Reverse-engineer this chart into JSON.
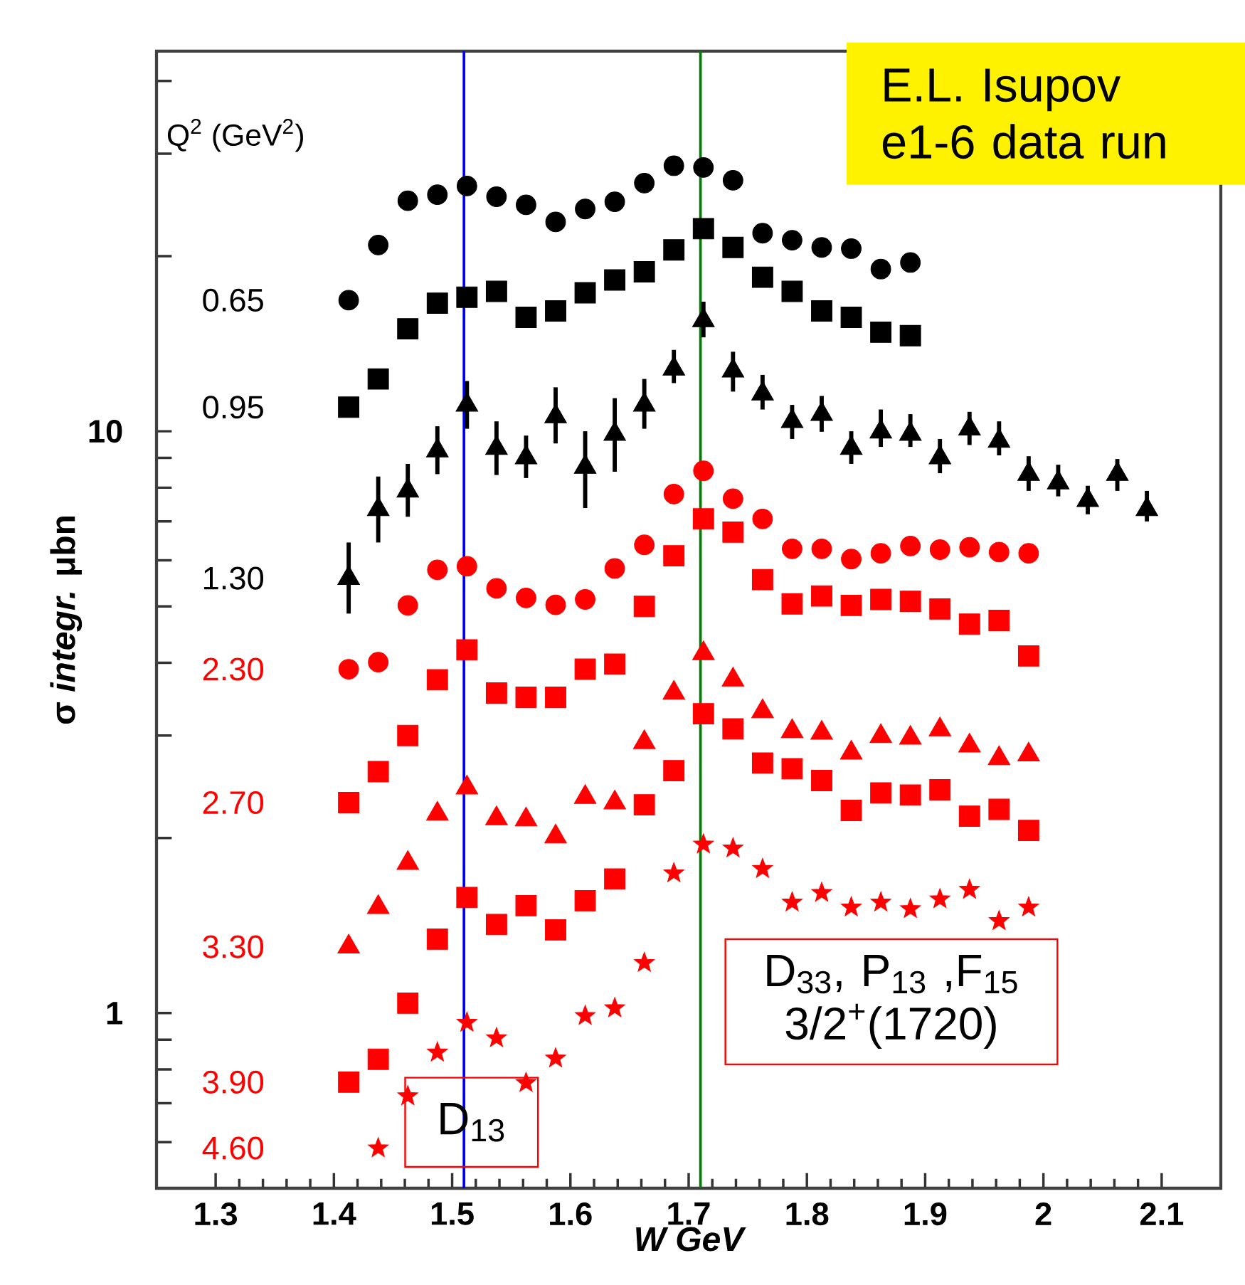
{
  "chart_data": {
    "type": "scatter",
    "xlabel": "W GeV",
    "ylabel": "σ *integr.* μbn",
    "legend_title": "Q$^{2}$ (GeV$^{2}$)",
    "log": "y",
    "xlim": [
      1.25,
      2.15
    ],
    "ylim": [
      0.5,
      45
    ],
    "xticks": [
      1.3,
      1.4,
      1.5,
      1.6,
      1.7,
      1.8,
      1.9,
      2,
      2.1
    ],
    "yticks": [
      {
        "value": 0.6,
        "label": null
      },
      {
        "value": 0.7,
        "label": null
      },
      {
        "value": 0.8,
        "label": null
      },
      {
        "value": 0.9,
        "label": null
      },
      {
        "value": 1,
        "label": "1"
      },
      {
        "value": 2,
        "label": null
      },
      {
        "value": 3,
        "label": null
      },
      {
        "value": 4,
        "label": null
      },
      {
        "value": 5,
        "label": null
      },
      {
        "value": 6,
        "label": null
      },
      {
        "value": 7,
        "label": null
      },
      {
        "value": 8,
        "label": null
      },
      {
        "value": 9,
        "label": null
      },
      {
        "value": 10,
        "label": "10"
      },
      {
        "value": 20,
        "label": null
      },
      {
        "value": 30,
        "label": null
      },
      {
        "value": 40,
        "label": null
      }
    ],
    "ref_lines": [
      {
        "axis": "x",
        "value": 1.51,
        "color": "#0000ff"
      },
      {
        "axis": "x",
        "value": 1.71,
        "color": "#008000"
      }
    ],
    "annotations": [
      "E.L. Isupov e1-6 data run",
      "D$_{13}$",
      "D$_{33}$, P$_{13}$ ,F$_{15}$ 3/2$^{+}$(1720)"
    ],
    "series": [
      {
        "name": "0.65",
        "color": "#000000",
        "marker": "circle",
        "x": [
          1.4125,
          1.4375,
          1.4625,
          1.4875,
          1.5125,
          1.5375,
          1.5625,
          1.5875,
          1.6125,
          1.6375,
          1.6625,
          1.6875,
          1.7125,
          1.7375,
          1.7625,
          1.7875,
          1.8125,
          1.8375,
          1.8625,
          1.8875
        ],
        "values": [
          16.8,
          20.9,
          24.9,
          25.5,
          26.4,
          25.3,
          24.5,
          22.9,
          24.1,
          24.8,
          26.7,
          28.6,
          28.4,
          27.0,
          21.9,
          21.3,
          20.7,
          20.6,
          19.0,
          19.5
        ]
      },
      {
        "name": "0.95",
        "color": "#000000",
        "marker": "square",
        "x": [
          1.4125,
          1.4375,
          1.4625,
          1.4875,
          1.5125,
          1.5375,
          1.5625,
          1.5875,
          1.6125,
          1.6375,
          1.6625,
          1.6875,
          1.7125,
          1.7375,
          1.7625,
          1.7875,
          1.8125,
          1.8375,
          1.8625,
          1.8875
        ],
        "values": [
          11.0,
          12.3,
          15.0,
          16.6,
          17.0,
          17.4,
          15.7,
          16.1,
          17.3,
          18.2,
          18.8,
          20.5,
          22.3,
          20.7,
          18.4,
          17.4,
          16.1,
          15.7,
          14.8,
          14.6
        ]
      },
      {
        "name": "1.30",
        "color": "#000000",
        "marker": "triangle",
        "x": [
          1.4125,
          1.4375,
          1.4625,
          1.4875,
          1.5125,
          1.5375,
          1.5625,
          1.5875,
          1.6125,
          1.6375,
          1.6625,
          1.6875,
          1.7125,
          1.7375,
          1.7625,
          1.7875,
          1.8125,
          1.8375,
          1.8625,
          1.8875,
          1.9125,
          1.9375,
          1.9625,
          1.9875,
          2.0125,
          2.0375,
          2.0625,
          2.0875
        ],
        "values": [
          5.59,
          7.34,
          7.9,
          9.26,
          11.1,
          9.35,
          9.01,
          10.6,
          8.68,
          9.89,
          11.1,
          12.8,
          15.5,
          12.7,
          11.6,
          10.4,
          10.7,
          9.35,
          9.98,
          9.89,
          9.01,
          10.1,
          9.62,
          8.44,
          8.16,
          7.61,
          8.44,
          7.34
        ],
        "errors": [
          [
            4.86,
            6.44
          ],
          [
            6.44,
            8.36
          ],
          [
            7.13,
            8.79
          ],
          [
            8.44,
            10.2
          ],
          [
            10.1,
            12.2
          ],
          [
            8.41,
            10.4
          ],
          [
            8.31,
            9.83
          ],
          [
            9.53,
            11.9
          ],
          [
            7.38,
            10.0
          ],
          [
            8.52,
            11.4
          ],
          [
            10.1,
            12.3
          ],
          [
            12.1,
            13.8
          ],
          [
            14.5,
            16.7
          ],
          [
            11.7,
            13.7
          ],
          [
            10.9,
            12.5
          ],
          [
            9.7,
            11.1
          ],
          [
            9.98,
            11.5
          ],
          [
            8.79,
            10.0
          ],
          [
            9.4,
            10.9
          ],
          [
            9.4,
            10.7
          ],
          [
            8.47,
            9.7
          ],
          [
            9.47,
            10.8
          ],
          [
            9.09,
            10.4
          ],
          [
            7.9,
            9.06
          ],
          [
            7.73,
            8.76
          ],
          [
            7.2,
            8.06
          ],
          [
            7.9,
            8.96
          ],
          [
            7.0,
            7.9
          ]
        ]
      },
      {
        "name": "2.30",
        "color": "#ff0000",
        "marker": "circle",
        "x": [
          1.4125,
          1.4375,
          1.4625,
          1.4875,
          1.5125,
          1.5375,
          1.5625,
          1.5875,
          1.6125,
          1.6375,
          1.6625,
          1.6875,
          1.7125,
          1.7375,
          1.7625,
          1.7875,
          1.8125,
          1.8375,
          1.8625,
          1.8875,
          1.9125,
          1.9375,
          1.9625,
          1.9875
        ],
        "values": [
          3.9,
          4.01,
          5.02,
          5.78,
          5.86,
          5.37,
          5.17,
          5.03,
          5.14,
          5.81,
          6.38,
          7.8,
          8.55,
          7.66,
          7.07,
          6.28,
          6.28,
          6.03,
          6.17,
          6.35,
          6.26,
          6.32,
          6.2,
          6.17
        ]
      },
      {
        "name": "2.70",
        "color": "#ff0000",
        "marker": "square",
        "x": [
          1.4125,
          1.4375,
          1.4625,
          1.4875,
          1.5125,
          1.5375,
          1.5625,
          1.5875,
          1.6125,
          1.6375,
          1.6625,
          1.6875,
          1.7125,
          1.7375,
          1.7625,
          1.7875,
          1.8125,
          1.8375,
          1.8625,
          1.8875,
          1.9125,
          1.9375,
          1.9625,
          1.9875
        ],
        "values": [
          2.3,
          2.6,
          3.0,
          3.74,
          4.21,
          3.55,
          3.49,
          3.49,
          3.9,
          3.98,
          5.0,
          6.11,
          7.07,
          6.71,
          5.56,
          5.05,
          5.21,
          5.02,
          5.14,
          5.1,
          4.95,
          4.66,
          4.73,
          4.11
        ]
      },
      {
        "name": "3.30",
        "color": "#ff0000",
        "marker": "triangle",
        "x": [
          1.4125,
          1.4375,
          1.4625,
          1.4875,
          1.5125,
          1.5375,
          1.5625,
          1.5875,
          1.6125,
          1.6375,
          1.6625,
          1.6875,
          1.7125,
          1.7375,
          1.7625,
          1.7875,
          1.8125,
          1.8375,
          1.8625,
          1.8875,
          1.9125,
          1.9375,
          1.9625,
          1.9875
        ],
        "values": [
          1.3,
          1.52,
          1.81,
          2.2,
          2.44,
          2.16,
          2.15,
          2.01,
          2.35,
          2.3,
          2.92,
          3.55,
          4.15,
          3.74,
          3.3,
          3.05,
          3.03,
          2.8,
          2.99,
          2.97,
          3.07,
          2.88,
          2.74,
          2.78
        ]
      },
      {
        "name": "3.90",
        "color": "#ff0000",
        "marker": "square",
        "x": [
          1.4125,
          1.4375,
          1.4625,
          1.4875,
          1.5125,
          1.5375,
          1.5625,
          1.5875,
          1.6125,
          1.6375,
          1.6625,
          1.6875,
          1.7125,
          1.7375,
          1.7625,
          1.7875,
          1.8125,
          1.8375,
          1.8625,
          1.8875,
          1.9125,
          1.9375,
          1.9625,
          1.9875
        ],
        "values": [
          0.761,
          0.833,
          1.04,
          1.34,
          1.58,
          1.42,
          1.53,
          1.39,
          1.56,
          1.7,
          2.28,
          2.61,
          3.27,
          3.08,
          2.69,
          2.63,
          2.51,
          2.23,
          2.39,
          2.37,
          2.42,
          2.18,
          2.24,
          2.06
        ]
      },
      {
        "name": "4.60",
        "color": "#ff0000",
        "marker": "star",
        "x": [
          1.4375,
          1.4625,
          1.4875,
          1.5125,
          1.5375,
          1.5625,
          1.5875,
          1.6125,
          1.6375,
          1.6625,
          1.6875,
          1.7125,
          1.7375,
          1.7625,
          1.7875,
          1.8125,
          1.8375,
          1.8625,
          1.8875,
          1.9125,
          1.9375,
          1.9625,
          1.9875
        ],
        "values": [
          0.586,
          0.72,
          0.856,
          0.963,
          0.906,
          0.759,
          0.836,
          0.989,
          1.02,
          1.22,
          1.74,
          1.95,
          1.92,
          1.77,
          1.55,
          1.61,
          1.52,
          1.55,
          1.51,
          1.57,
          1.63,
          1.44,
          1.52
        ]
      }
    ]
  }
}
